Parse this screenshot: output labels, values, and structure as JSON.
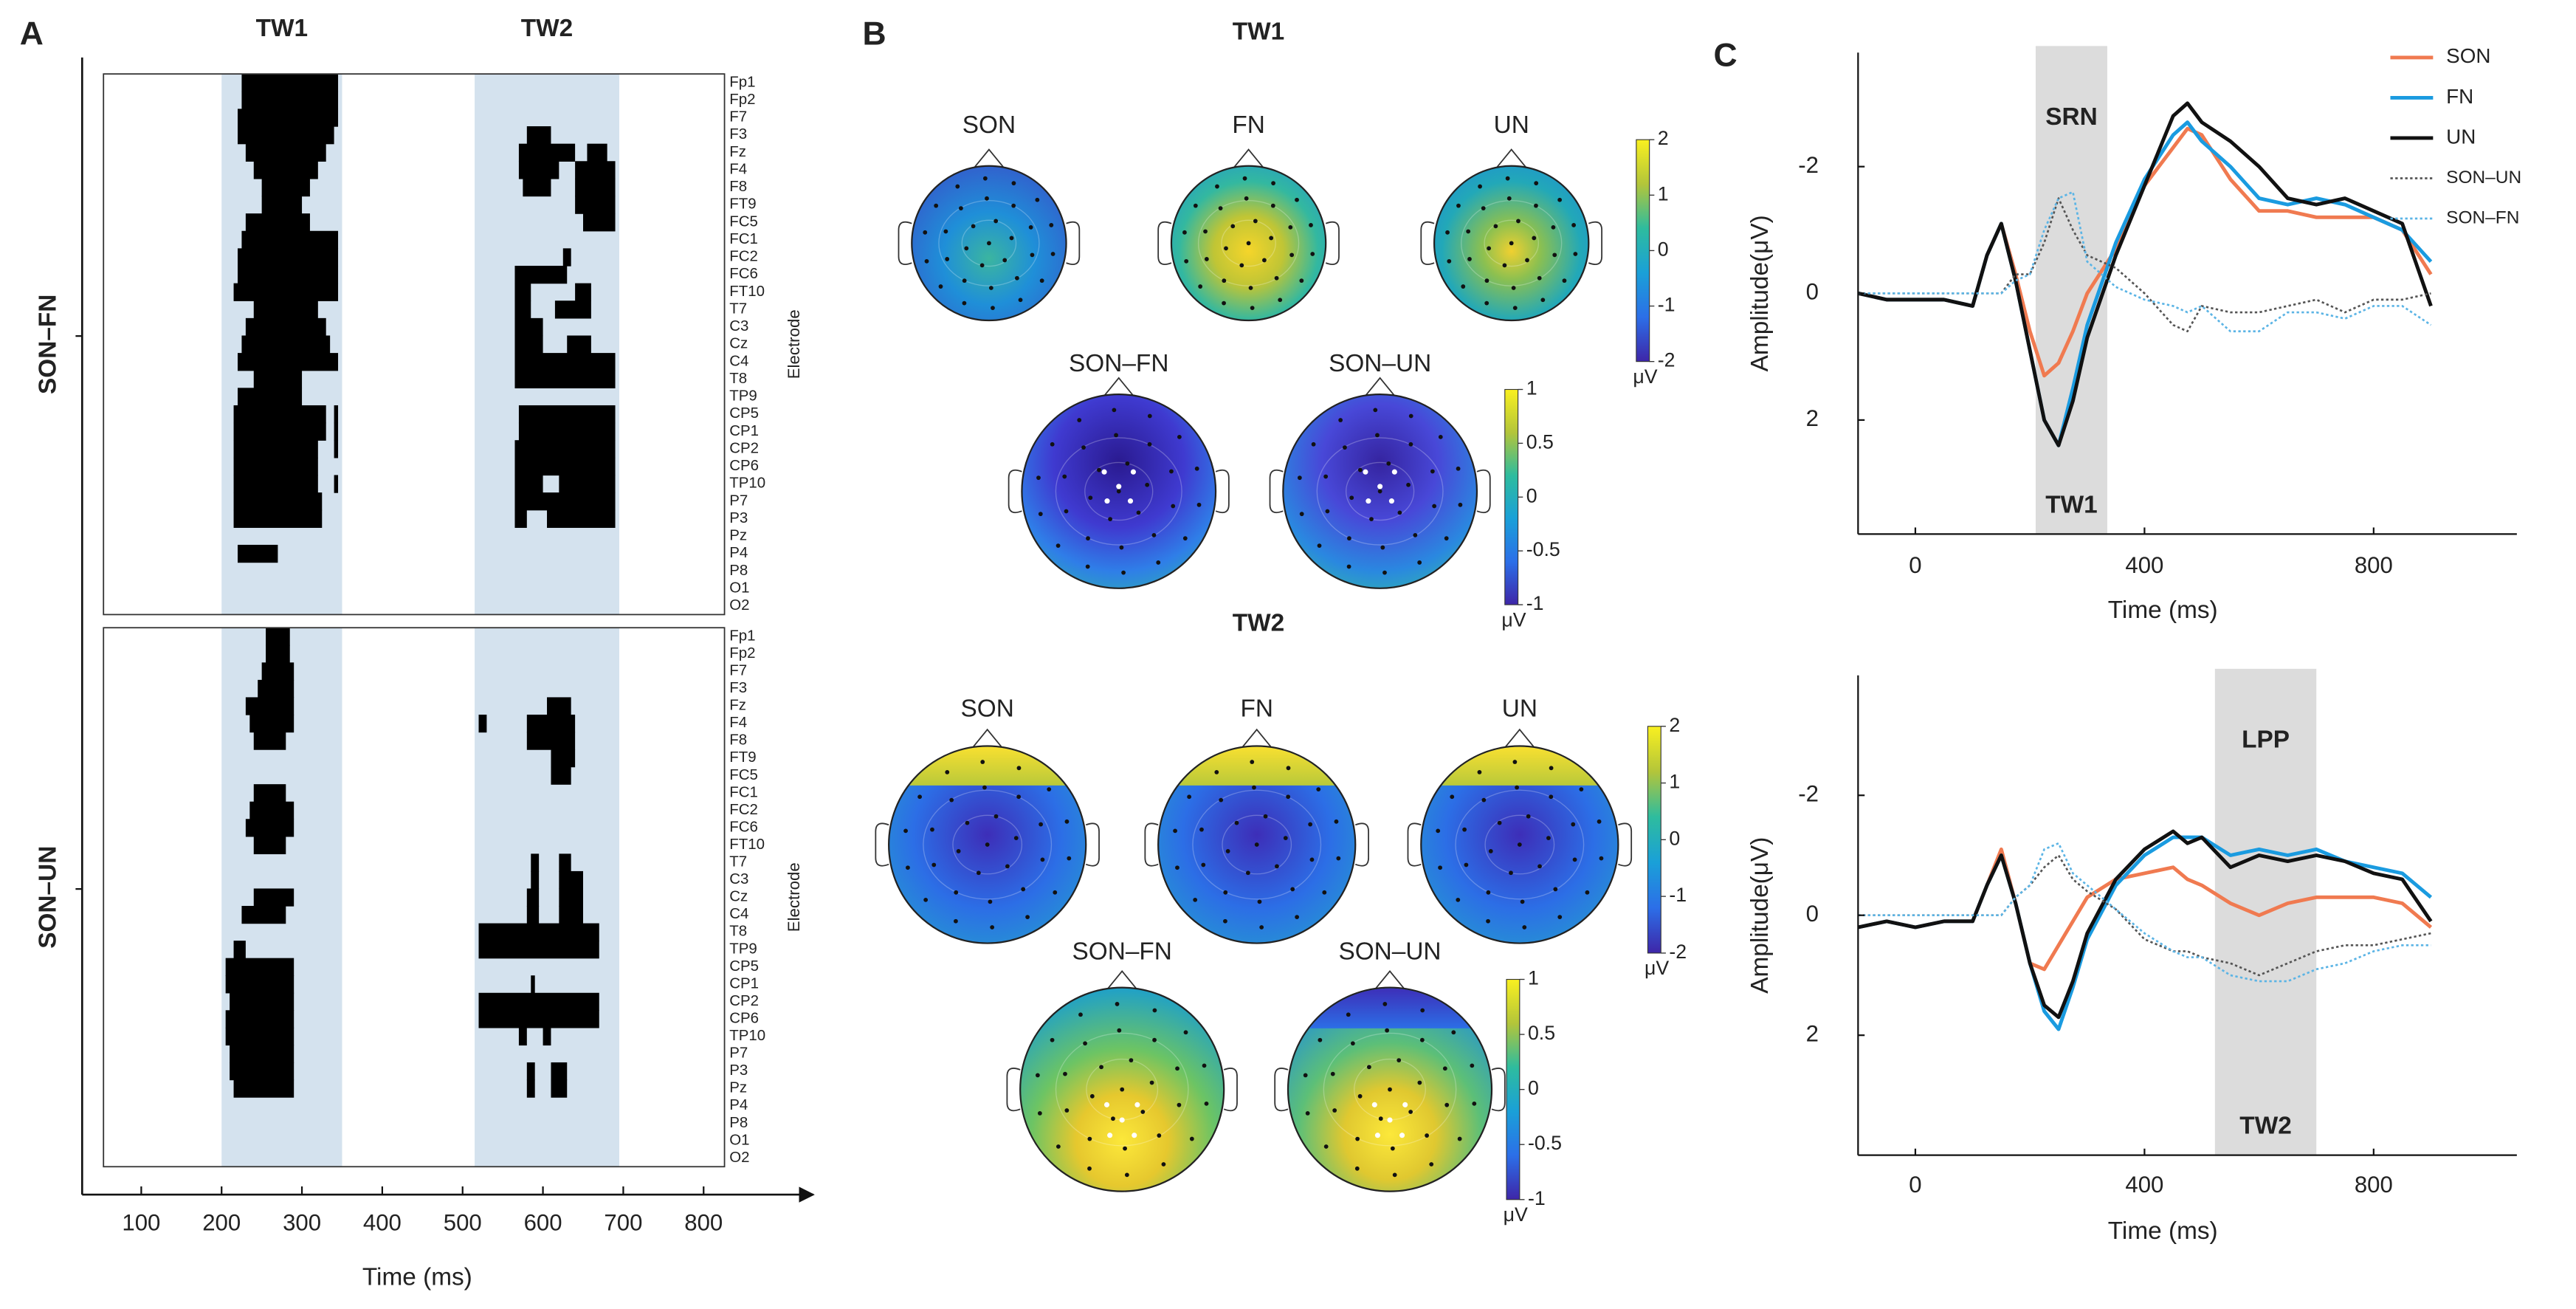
{
  "panel_a": {
    "label": "A",
    "xlabel": "Time (ms)",
    "ylabel": "Electrode",
    "xlim": [
      53,
      826
    ],
    "xticks": [
      100,
      200,
      300,
      400,
      500,
      600,
      700,
      800
    ],
    "windows": [
      {
        "label": "TW1",
        "range": [
          200,
          350
        ]
      },
      {
        "label": "TW2",
        "range": [
          515,
          695
        ]
      }
    ],
    "window_color": "#d4e2ee",
    "electrodes": [
      "Fp1",
      "Fp2",
      "F7",
      "F3",
      "Fz",
      "F4",
      "F8",
      "FT9",
      "FC5",
      "FC1",
      "FC2",
      "FC6",
      "FT10",
      "T7",
      "C3",
      "Cz",
      "C4",
      "T8",
      "TP9",
      "CP5",
      "CP1",
      "CP2",
      "CP6",
      "TP10",
      "P7",
      "P3",
      "Pz",
      "P4",
      "P8",
      "O1",
      "O2"
    ],
    "contrasts": [
      {
        "label": "SON–FN",
        "intervals": [
          [
            [
              225,
              345
            ]
          ],
          [
            [
              225,
              345
            ]
          ],
          [
            [
              220,
              345
            ]
          ],
          [
            [
              220,
              340
            ],
            [
              580,
              610
            ]
          ],
          [
            [
              230,
              330
            ],
            [
              570,
              640
            ],
            [
              655,
              680
            ]
          ],
          [
            [
              240,
              320
            ],
            [
              570,
              620
            ],
            [
              640,
              690
            ]
          ],
          [
            [
              250,
              310
            ],
            [
              575,
              610
            ],
            [
              640,
              690
            ]
          ],
          [
            [
              250,
              300
            ],
            [
              640,
              690
            ]
          ],
          [
            [
              230,
              310
            ],
            [
              650,
              690
            ]
          ],
          [
            [
              225,
              345
            ]
          ],
          [
            [
              220,
              345
            ],
            [
              625,
              635
            ]
          ],
          [
            [
              220,
              345
            ],
            [
              565,
              630
            ]
          ],
          [
            [
              215,
              345
            ],
            [
              565,
              585
            ],
            [
              640,
              660
            ]
          ],
          [
            [
              240,
              320
            ],
            [
              565,
              585
            ],
            [
              615,
              660
            ]
          ],
          [
            [
              230,
              330
            ],
            [
              565,
              600
            ]
          ],
          [
            [
              225,
              335
            ],
            [
              565,
              600
            ],
            [
              630,
              660
            ]
          ],
          [
            [
              220,
              345
            ],
            [
              565,
              690
            ]
          ],
          [
            [
              240,
              300
            ],
            [
              565,
              690
            ]
          ],
          [
            [
              220,
              300
            ]
          ],
          [
            [
              215,
              330
            ],
            [
              340,
              345
            ],
            [
              570,
              690
            ]
          ],
          [
            [
              215,
              330
            ],
            [
              340,
              345
            ],
            [
              570,
              690
            ]
          ],
          [
            [
              215,
              320
            ],
            [
              340,
              345
            ],
            [
              565,
              690
            ]
          ],
          [
            [
              215,
              320
            ],
            [
              565,
              690
            ]
          ],
          [
            [
              215,
              320
            ],
            [
              340,
              345
            ],
            [
              565,
              600
            ],
            [
              620,
              690
            ]
          ],
          [
            [
              215,
              325
            ],
            [
              565,
              690
            ]
          ],
          [
            [
              215,
              325
            ],
            [
              565,
              580
            ],
            [
              605,
              690
            ]
          ],
          [],
          [
            [
              220,
              270
            ]
          ],
          [],
          [],
          []
        ]
      },
      {
        "label": "SON–UN",
        "intervals": [
          [
            [
              255,
              285
            ]
          ],
          [
            [
              255,
              285
            ]
          ],
          [
            [
              250,
              290
            ]
          ],
          [
            [
              245,
              290
            ]
          ],
          [
            [
              230,
              290
            ],
            [
              605,
              635
            ]
          ],
          [
            [
              235,
              290
            ],
            [
              520,
              530
            ],
            [
              580,
              640
            ]
          ],
          [
            [
              240,
              280
            ],
            [
              580,
              640
            ]
          ],
          [
            [
              610,
              640
            ]
          ],
          [
            [
              610,
              635
            ]
          ],
          [
            [
              240,
              280
            ]
          ],
          [
            [
              235,
              290
            ]
          ],
          [
            [
              230,
              290
            ]
          ],
          [
            [
              240,
              280
            ]
          ],
          [
            [
              585,
              595
            ],
            [
              620,
              635
            ]
          ],
          [
            [
              585,
              595
            ],
            [
              620,
              650
            ]
          ],
          [
            [
              240,
              290
            ],
            [
              580,
              595
            ],
            [
              620,
              650
            ]
          ],
          [
            [
              225,
              280
            ],
            [
              580,
              595
            ],
            [
              620,
              650
            ]
          ],
          [
            [
              520,
              670
            ]
          ],
          [
            [
              215,
              230
            ],
            [
              520,
              670
            ]
          ],
          [
            [
              205,
              290
            ]
          ],
          [
            [
              205,
              290
            ],
            [
              585,
              590
            ]
          ],
          [
            [
              210,
              290
            ],
            [
              520,
              670
            ]
          ],
          [
            [
              205,
              290
            ],
            [
              520,
              670
            ]
          ],
          [
            [
              205,
              290
            ],
            [
              570,
              580
            ],
            [
              600,
              610
            ]
          ],
          [
            [
              210,
              290
            ]
          ],
          [
            [
              210,
              290
            ],
            [
              580,
              590
            ],
            [
              610,
              630
            ]
          ],
          [
            [
              215,
              290
            ],
            [
              580,
              590
            ],
            [
              610,
              630
            ]
          ],
          [],
          [],
          [],
          []
        ]
      }
    ]
  },
  "panel_b": {
    "label": "B",
    "windows": [
      {
        "label": "TW1",
        "maps": [
          "SON",
          "FN",
          "UN",
          "SON–FN",
          "SON–UN"
        ],
        "colorbars": [
          {
            "lim": [
              -2,
              2
            ],
            "ticks": [
              2,
              1,
              0,
              -1,
              -2
            ],
            "unit": "μV"
          },
          {
            "lim": [
              -1,
              1
            ],
            "ticks": [
              1,
              0.5,
              0,
              -0.5,
              -1
            ],
            "unit": "μV"
          }
        ]
      },
      {
        "label": "TW2",
        "maps": [
          "SON",
          "FN",
          "UN",
          "SON–FN",
          "SON–UN"
        ],
        "colorbars": [
          {
            "lim": [
              -2,
              2
            ],
            "ticks": [
              2,
              1,
              0,
              -1,
              -2
            ],
            "unit": "μV"
          },
          {
            "lim": [
              -1,
              1
            ],
            "ticks": [
              1,
              0.5,
              0,
              -0.5,
              -1
            ],
            "unit": "μV"
          }
        ]
      }
    ]
  },
  "panel_c_label": "C",
  "chart_data": [
    {
      "type": "line",
      "xlabel": "Time (ms)",
      "ylabel": "Amplitude(μV)",
      "xlim": [
        -100,
        1050
      ],
      "xticks": [
        0,
        400,
        800
      ],
      "ylim": [
        -3.8,
        3.8
      ],
      "yticks": [
        -2,
        0,
        2
      ],
      "y_inverted": true,
      "legend": "upper right",
      "window": {
        "range": [
          210,
          335
        ],
        "label": "TW1",
        "component": "SRN",
        "color": "#dcdcdc"
      },
      "x": [
        -100,
        -50,
        0,
        50,
        100,
        125,
        150,
        175,
        200,
        225,
        250,
        275,
        300,
        350,
        400,
        450,
        475,
        500,
        550,
        600,
        650,
        700,
        750,
        800,
        850,
        900
      ],
      "series": [
        {
          "name": "SON",
          "color": "#f07a50",
          "dashed": false,
          "values": [
            0,
            0.1,
            0.1,
            0.1,
            0.2,
            -0.6,
            -1.1,
            -0.3,
            0.6,
            1.3,
            1.1,
            0.6,
            0.0,
            -0.7,
            -1.7,
            -2.3,
            -2.6,
            -2.5,
            -1.8,
            -1.3,
            -1.3,
            -1.2,
            -1.2,
            -1.2,
            -1.0,
            -0.3
          ]
        },
        {
          "name": "FN",
          "color": "#1a9be0",
          "dashed": false,
          "values": [
            0,
            0.1,
            0.1,
            0.1,
            0.2,
            -0.6,
            -1.1,
            -0.2,
            0.9,
            2.0,
            2.4,
            1.5,
            0.5,
            -0.8,
            -1.8,
            -2.5,
            -2.7,
            -2.4,
            -2.0,
            -1.5,
            -1.4,
            -1.5,
            -1.4,
            -1.2,
            -1.0,
            -0.5
          ]
        },
        {
          "name": "UN",
          "color": "#111111",
          "dashed": false,
          "values": [
            0,
            0.1,
            0.1,
            0.1,
            0.2,
            -0.6,
            -1.1,
            -0.2,
            0.9,
            2.0,
            2.4,
            1.7,
            0.7,
            -0.6,
            -1.7,
            -2.8,
            -3.0,
            -2.7,
            -2.4,
            -2.0,
            -1.5,
            -1.4,
            -1.5,
            -1.3,
            -1.1,
            0.2
          ]
        },
        {
          "name": "SON–UN",
          "color": "#555555",
          "dashed": true,
          "values": [
            0,
            0,
            0,
            0,
            0,
            0,
            0,
            -0.3,
            -0.3,
            -0.8,
            -1.5,
            -1.0,
            -0.6,
            -0.4,
            0.0,
            0.5,
            0.6,
            0.2,
            0.3,
            0.3,
            0.2,
            0.1,
            0.3,
            0.1,
            0.1,
            0.0
          ]
        },
        {
          "name": "SON–FN",
          "color": "#5bb4e5",
          "dashed": true,
          "values": [
            0,
            0,
            0,
            0,
            0,
            0,
            0,
            -0.2,
            -0.3,
            -1.0,
            -1.5,
            -1.6,
            -0.5,
            -0.1,
            0.1,
            0.2,
            0.3,
            0.2,
            0.6,
            0.6,
            0.3,
            0.3,
            0.4,
            0.2,
            0.2,
            0.5
          ]
        }
      ]
    },
    {
      "type": "line",
      "xlabel": "Time (ms)",
      "ylabel": "Amplitude(μV)",
      "xlim": [
        -100,
        1050
      ],
      "xticks": [
        0,
        400,
        800
      ],
      "ylim": [
        -4,
        4
      ],
      "yticks": [
        -2,
        0,
        2
      ],
      "y_inverted": true,
      "window": {
        "range": [
          523,
          700
        ],
        "label": "TW2",
        "component": "LPP",
        "color": "#dcdcdc"
      },
      "x": [
        -100,
        -50,
        0,
        50,
        100,
        125,
        150,
        175,
        200,
        225,
        250,
        275,
        300,
        350,
        400,
        450,
        475,
        500,
        550,
        600,
        650,
        700,
        750,
        800,
        850,
        900
      ],
      "series": [
        {
          "name": "SON",
          "color": "#f07a50",
          "dashed": false,
          "values": [
            0.2,
            0.1,
            0.2,
            0.1,
            0.1,
            -0.5,
            -1.1,
            -0.2,
            0.8,
            0.9,
            0.5,
            0.1,
            -0.3,
            -0.6,
            -0.7,
            -0.8,
            -0.6,
            -0.5,
            -0.2,
            0.0,
            -0.2,
            -0.3,
            -0.3,
            -0.3,
            -0.2,
            0.2
          ]
        },
        {
          "name": "FN",
          "color": "#1a9be0",
          "dashed": false,
          "values": [
            0.2,
            0.1,
            0.2,
            0.1,
            0.1,
            -0.5,
            -1.0,
            -0.2,
            0.8,
            1.6,
            1.9,
            1.2,
            0.4,
            -0.5,
            -1.0,
            -1.3,
            -1.3,
            -1.3,
            -1.0,
            -1.1,
            -1.0,
            -1.1,
            -0.9,
            -0.8,
            -0.7,
            -0.3
          ]
        },
        {
          "name": "UN",
          "color": "#111111",
          "dashed": false,
          "values": [
            0.2,
            0.1,
            0.2,
            0.1,
            0.1,
            -0.5,
            -1.0,
            -0.2,
            0.8,
            1.5,
            1.7,
            1.1,
            0.3,
            -0.6,
            -1.1,
            -1.4,
            -1.2,
            -1.3,
            -0.8,
            -1.0,
            -0.9,
            -1.0,
            -0.9,
            -0.7,
            -0.6,
            0.1
          ]
        },
        {
          "name": "SON–UN",
          "color": "#555555",
          "dashed": true,
          "values": [
            0,
            0,
            0,
            0,
            0,
            0,
            0,
            -0.3,
            -0.5,
            -0.8,
            -1.0,
            -0.6,
            -0.4,
            -0.1,
            0.4,
            0.6,
            0.6,
            0.7,
            0.8,
            1.0,
            0.8,
            0.6,
            0.5,
            0.5,
            0.4,
            0.3
          ]
        },
        {
          "name": "SON–FN",
          "color": "#5bb4e5",
          "dashed": true,
          "values": [
            0,
            0,
            0,
            0,
            0,
            0,
            0,
            -0.3,
            -0.5,
            -1.1,
            -1.2,
            -0.7,
            -0.5,
            -0.1,
            0.3,
            0.6,
            0.7,
            0.7,
            1.0,
            1.1,
            1.1,
            0.9,
            0.8,
            0.6,
            0.5,
            0.5
          ]
        }
      ]
    }
  ]
}
